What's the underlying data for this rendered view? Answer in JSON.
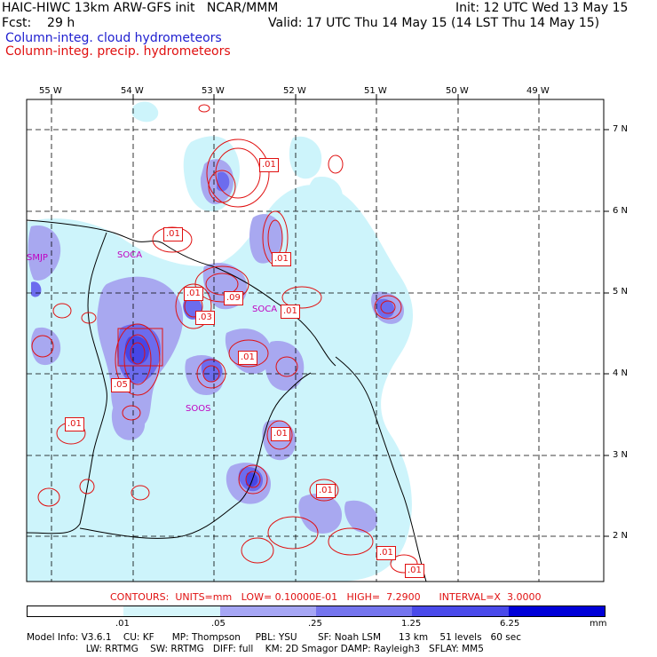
{
  "header": {
    "line1_left": "HAIC-HIWC 13km ARW-GFS init   NCAR/MMM",
    "line1_right": "Init: 12 UTC Wed 13 May 15",
    "line2_left": "Fcst:    29 h",
    "line2_right": "Valid: 17 UTC Thu 14 May 15 (14 LST Thu 14 May 15)",
    "line3": "Column-integ. cloud hydrometeors",
    "line4": "Column-integ. precip. hydrometeors"
  },
  "map": {
    "longitude_labels": [
      "55 W",
      "54 W",
      "53 W",
      "52 W",
      "51 W",
      "50 W",
      "49 W"
    ],
    "latitude_labels": [
      "7 N",
      "6 N",
      "5 N",
      "4 N",
      "3 N",
      "2 N"
    ],
    "stations": [
      "SMJP",
      "SOCA",
      "SOOS",
      "SOCA"
    ],
    "contour_labels": [
      ".01",
      ".01",
      ".01",
      ".01",
      ".09",
      ".03",
      ".01",
      ".01",
      ".05",
      ".01",
      ".01",
      ".01",
      ".01",
      ".01",
      ".01"
    ],
    "colors": {
      "coast": "#000000",
      "cloud_light": "#cdf4fb",
      "cloud_mid": "#a8a8f0",
      "cloud_dark": "#6c6cee",
      "cloud_darker": "#4646e6",
      "precip": "#e01010",
      "grid": "#000000"
    }
  },
  "contours_info": "CONTOURS:  UNITS=mm   LOW= 0.10000E-01   HIGH=  7.2900      INTERVAL=X  3.0000",
  "colorbar": {
    "ticks": [
      ".01",
      ".05",
      ".25",
      "1.25",
      "6.25"
    ],
    "unit": "mm",
    "colors": [
      "#ffffff",
      "#d6f6fb",
      "#a6a6f4",
      "#7575ee",
      "#4a4aea",
      "#2222e0",
      "#0000d8"
    ]
  },
  "footer": {
    "line1": "Model Info: V3.6.1    CU: KF      MP: Thompson     PBL: YSU       SF: Noah LSM      13 km    51 levels   60 sec",
    "line2": "                    LW: RRTMG    SW: RRTMG   DIFF: full    KM: 2D Smagor DAMP: Rayleigh3   SFLAY: MM5"
  }
}
